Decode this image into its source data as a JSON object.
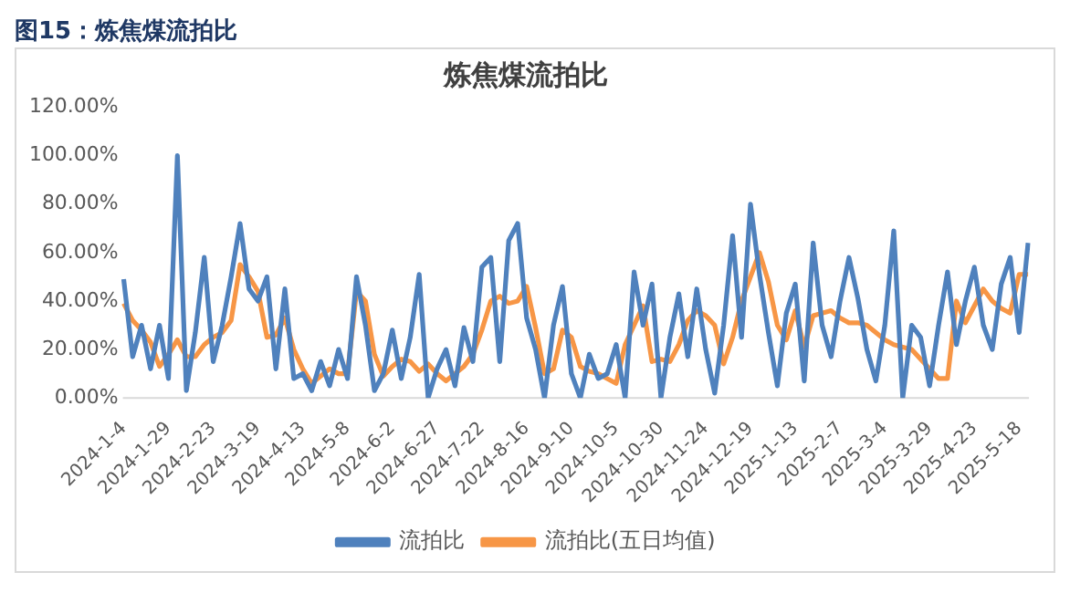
{
  "chart_data": {
    "type": "line",
    "title": "图15：炼焦煤流拍比",
    "subtitle": "炼焦煤流拍比",
    "categories": [
      "2024-1-4",
      null,
      null,
      null,
      null,
      "2024-1-29",
      null,
      null,
      null,
      null,
      "2024-2-23",
      null,
      null,
      null,
      null,
      "2024-3-19",
      null,
      null,
      null,
      null,
      "2024-4-13",
      null,
      null,
      null,
      null,
      "2024-5-8",
      null,
      null,
      null,
      null,
      "2024-6-2",
      null,
      null,
      null,
      null,
      "2024-6-27",
      null,
      null,
      null,
      null,
      "2024-7-22",
      null,
      null,
      null,
      null,
      "2024-8-16",
      null,
      null,
      null,
      null,
      "2024-9-10",
      null,
      null,
      null,
      null,
      "2024-10-5",
      null,
      null,
      null,
      null,
      "2024-10-30",
      null,
      null,
      null,
      null,
      "2024-11-24",
      null,
      null,
      null,
      null,
      "2024-12-19",
      null,
      null,
      null,
      null,
      "2025-1-13",
      null,
      null,
      null,
      null,
      "2025-2-7",
      null,
      null,
      null,
      null,
      "2025-3-4",
      null,
      null,
      null,
      null,
      "2025-3-29",
      null,
      null,
      null,
      null,
      "2025-4-23",
      null,
      null,
      null,
      null,
      "2025-5-18",
      null
    ],
    "series": [
      {
        "name": "流拍比",
        "color": "#4f81bd",
        "values": [
          49,
          17,
          30,
          12,
          30,
          8,
          100,
          3,
          27,
          58,
          15,
          30,
          50,
          72,
          45,
          40,
          50,
          12,
          45,
          8,
          10,
          3,
          15,
          5,
          20,
          8,
          50,
          30,
          3,
          10,
          28,
          8,
          25,
          51,
          0,
          12,
          20,
          5,
          29,
          15,
          54,
          58,
          15,
          65,
          72,
          33,
          20,
          0,
          30,
          46,
          10,
          0,
          18,
          8,
          10,
          22,
          0,
          52,
          30,
          47,
          0,
          25,
          43,
          17,
          45,
          20,
          2,
          30,
          67,
          25,
          80,
          51,
          27,
          5,
          35,
          47,
          7,
          64,
          30,
          17,
          40,
          58,
          41,
          20,
          7,
          30,
          69,
          0,
          30,
          25,
          5,
          30,
          52,
          22,
          40,
          54,
          30,
          20,
          47,
          58,
          27,
          64
        ]
      },
      {
        "name": "流拍比(五日均值)",
        "color": "#f79646",
        "values": [
          39,
          32,
          28,
          23,
          13,
          18,
          24,
          17,
          17,
          22,
          25,
          27,
          32,
          55,
          50,
          44,
          25,
          26,
          33,
          20,
          12,
          6,
          9,
          12,
          10,
          10,
          44,
          40,
          18,
          9,
          13,
          16,
          15,
          11,
          14,
          10,
          7,
          10,
          13,
          18,
          28,
          40,
          42,
          39,
          40,
          46,
          29,
          10,
          12,
          28,
          25,
          13,
          11,
          10,
          8,
          6,
          22,
          30,
          38,
          15,
          16,
          15,
          22,
          32,
          36,
          34,
          30,
          14,
          25,
          40,
          50,
          60,
          48,
          30,
          24,
          36,
          21,
          34,
          35,
          36,
          33,
          31,
          31,
          30,
          27,
          24,
          22,
          21,
          20,
          16,
          12,
          8,
          8,
          40,
          31,
          38,
          45,
          40,
          37,
          35,
          51,
          51
        ]
      }
    ],
    "ylim": [
      0,
      120
    ],
    "yticks": [
      {
        "value": 0,
        "label": "0.00%"
      },
      {
        "value": 20,
        "label": "20.00%"
      },
      {
        "value": 40,
        "label": "40.00%"
      },
      {
        "value": 60,
        "label": "60.00%"
      },
      {
        "value": 80,
        "label": "80.00%"
      },
      {
        "value": 100,
        "label": "100.00%"
      },
      {
        "value": 120,
        "label": "120.00%"
      }
    ],
    "grid": false,
    "legend": "bottom",
    "marker": "none",
    "line_style": "solid"
  }
}
